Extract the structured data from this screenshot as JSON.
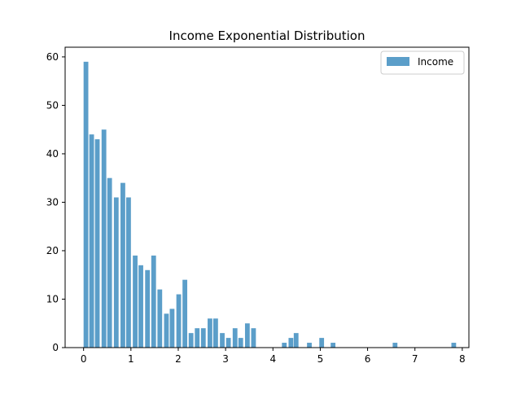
{
  "chart_data": {
    "type": "bar",
    "title": "Income Exponential Distribution",
    "xlabel": "",
    "ylabel": "",
    "xlim": [
      -0.39,
      8.14
    ],
    "ylim": [
      0,
      62
    ],
    "x_ticks": [
      0,
      1,
      2,
      3,
      4,
      5,
      6,
      7,
      8
    ],
    "y_ticks": [
      0,
      10,
      20,
      30,
      40,
      50,
      60
    ],
    "grid": false,
    "legend": {
      "placement": "top-right",
      "entries": [
        "Income"
      ]
    },
    "bar_width": 0.1,
    "series": [
      {
        "name": "Income",
        "color": "#5b9ec9",
        "x": [
          0.05,
          0.17,
          0.29,
          0.43,
          0.55,
          0.69,
          0.83,
          0.95,
          1.09,
          1.21,
          1.35,
          1.48,
          1.61,
          1.75,
          1.87,
          2.01,
          2.14,
          2.27,
          2.4,
          2.53,
          2.67,
          2.79,
          2.93,
          3.06,
          3.2,
          3.32,
          3.46,
          3.59,
          4.24,
          4.38,
          4.49,
          4.77,
          5.03,
          5.27,
          6.58,
          7.82
        ],
        "values": [
          59,
          44,
          43,
          45,
          35,
          31,
          34,
          31,
          19,
          17,
          16,
          19,
          12,
          7,
          8,
          11,
          14,
          3,
          4,
          4,
          6,
          6,
          3,
          2,
          4,
          2,
          5,
          4,
          1,
          2,
          3,
          1,
          2,
          1,
          1,
          1
        ]
      }
    ]
  }
}
